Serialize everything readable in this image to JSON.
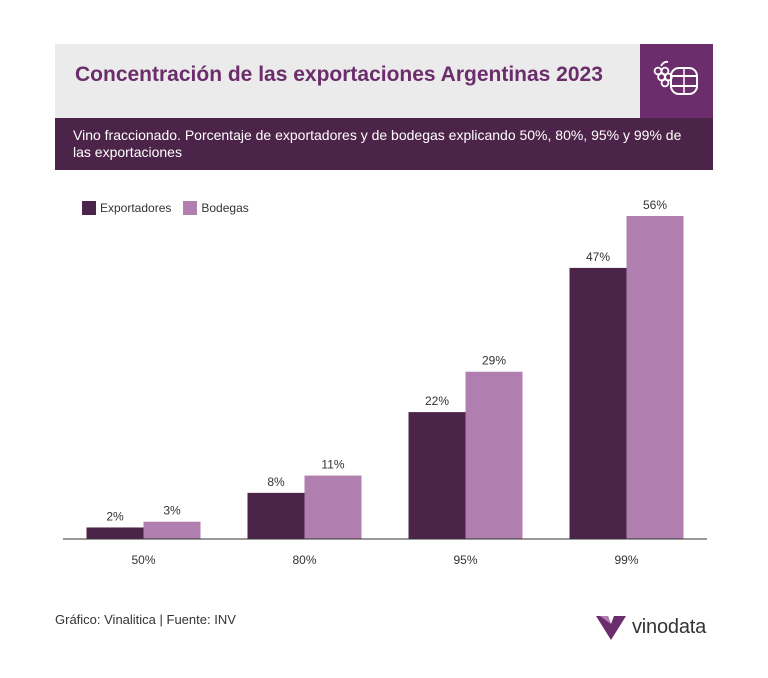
{
  "header": {
    "title": "Concentración de las exportaciones Argentinas 2023",
    "subtitle": "Vino fraccionado. Porcentaje de exportadores y de bodegas explicando 50%, 80%, 95% y 99% de las exportaciones",
    "logo_icon": "grapes-barrel-icon"
  },
  "colors": {
    "title": "#6b2d6b",
    "subtitle_band": "#4d2449",
    "exportadores": "#4d2449",
    "bodegas": "#b07fb0"
  },
  "chart_data": {
    "type": "bar",
    "categories": [
      "50%",
      "80%",
      "95%",
      "99%"
    ],
    "series": [
      {
        "name": "Exportadores",
        "values": [
          2,
          8,
          22,
          47
        ],
        "labels": [
          "2%",
          "8%",
          "22%",
          "47%"
        ],
        "color": "#4d2449"
      },
      {
        "name": "Bodegas",
        "values": [
          3,
          11,
          29,
          56
        ],
        "labels": [
          "3%",
          "11%",
          "29%",
          "56%"
        ],
        "color": "#b07fb0"
      }
    ],
    "ylim": [
      0,
      56
    ],
    "grid": false,
    "legend": "top-left"
  },
  "footer": {
    "source": "Gráfico: Vinalitica | Fuente: INV",
    "brand": "vinodata",
    "brand_icon": "vinodata-logo-icon"
  }
}
